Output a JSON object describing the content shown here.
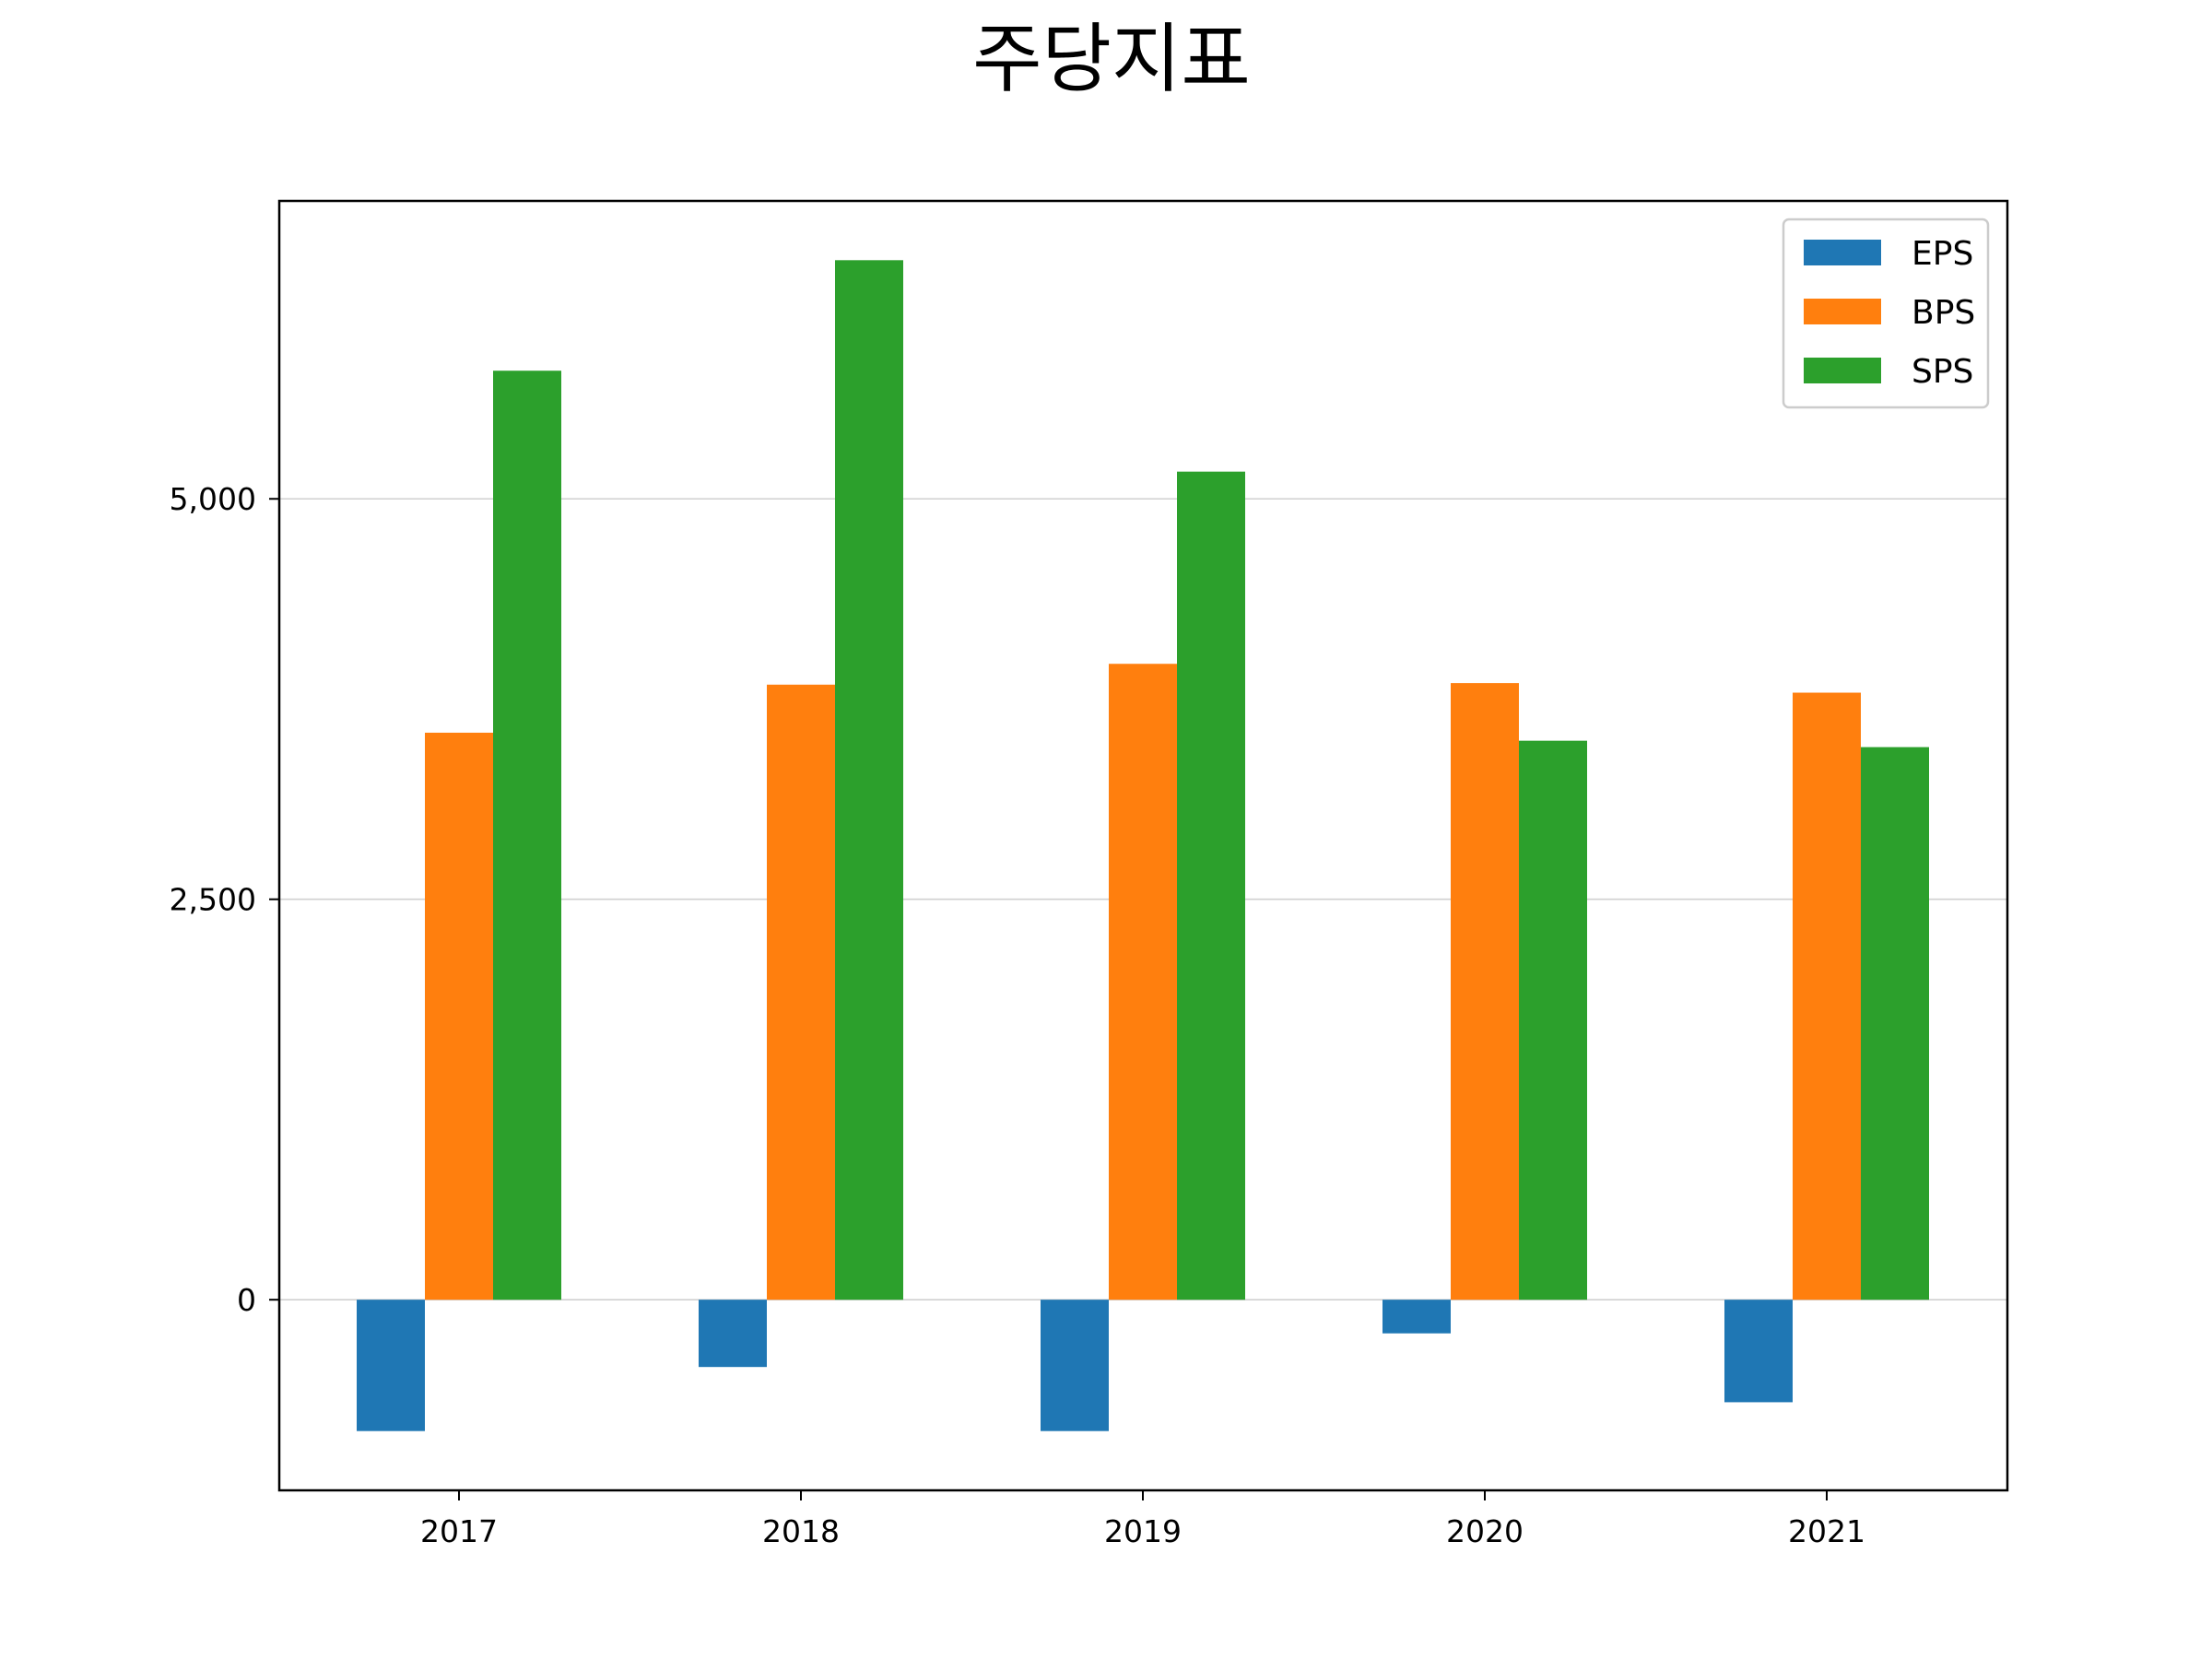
{
  "chart_data": {
    "type": "bar",
    "title": "주당지표",
    "xlabel": "",
    "ylabel": "",
    "categories": [
      "2017",
      "2018",
      "2019",
      "2020",
      "2021"
    ],
    "series": [
      {
        "name": "EPS",
        "color": "#1f77b4",
        "values": [
          -820,
          -420,
          -820,
          -210,
          -640
        ]
      },
      {
        "name": "BPS",
        "color": "#ff7f0e",
        "values": [
          3540,
          3840,
          3970,
          3850,
          3790
        ]
      },
      {
        "name": "SPS",
        "color": "#2ca02c",
        "values": [
          5800,
          6490,
          5170,
          3490,
          3450
        ]
      }
    ],
    "yticks": [
      0,
      2500,
      5000
    ],
    "ytick_labels": [
      "0",
      "2,500",
      "5,000"
    ],
    "ylim": [
      -1190,
      6860
    ],
    "grid": "horizontal",
    "legend_position": "upper right"
  }
}
